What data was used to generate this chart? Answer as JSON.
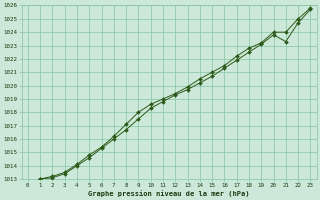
{
  "x": [
    0,
    1,
    2,
    3,
    4,
    5,
    6,
    7,
    8,
    9,
    10,
    11,
    12,
    13,
    14,
    15,
    16,
    17,
    18,
    19,
    20,
    21,
    22,
    23
  ],
  "line1": [
    1012.8,
    1013.0,
    1013.1,
    1013.4,
    1014.0,
    1014.6,
    1015.3,
    1016.0,
    1016.7,
    1017.5,
    1018.3,
    1018.8,
    1019.3,
    1019.7,
    1020.2,
    1020.7,
    1021.3,
    1021.9,
    1022.5,
    1023.1,
    1023.8,
    1023.3,
    1024.7,
    1025.7
  ],
  "line2": [
    1012.8,
    1013.0,
    1013.2,
    1013.5,
    1014.1,
    1014.8,
    1015.4,
    1016.2,
    1017.1,
    1018.0,
    1018.6,
    1019.0,
    1019.4,
    1019.9,
    1020.5,
    1021.0,
    1021.5,
    1022.2,
    1022.8,
    1023.2,
    1024.0,
    1024.0,
    1025.0,
    1025.8
  ],
  "line_color": "#2d5a1b",
  "marker_color": "#2d5a1b",
  "bg_color": "#cce8d8",
  "grid_color": "#88c4a4",
  "tick_label_color": "#1a3a10",
  "xlabel": "Graphe pression niveau de la mer (hPa)",
  "xlabel_color": "#1a3a10",
  "ylim": [
    1013,
    1026
  ],
  "xlim": [
    -0.5,
    23.5
  ],
  "yticks": [
    1013,
    1014,
    1015,
    1016,
    1017,
    1018,
    1019,
    1020,
    1021,
    1022,
    1023,
    1024,
    1025,
    1026
  ],
  "xticks": [
    0,
    1,
    2,
    3,
    4,
    5,
    6,
    7,
    8,
    9,
    10,
    11,
    12,
    13,
    14,
    15,
    16,
    17,
    18,
    19,
    20,
    21,
    22,
    23
  ]
}
